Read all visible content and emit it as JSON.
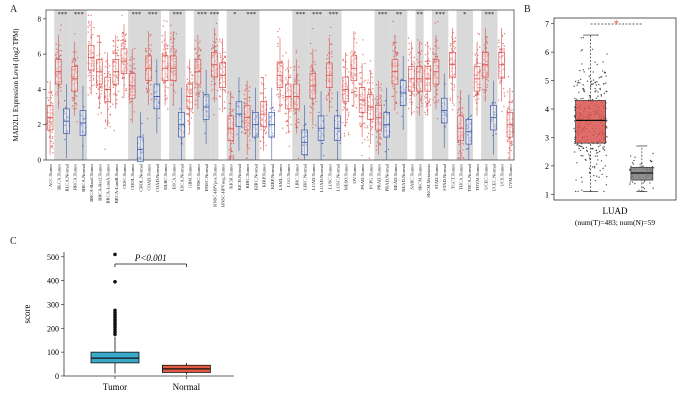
{
  "figure": {
    "panel_a": {
      "letter": "A",
      "ylabel": "MAD2L1 Expression Level (log2 TPM)",
      "yticks": [
        0,
        2,
        4,
        6,
        8
      ],
      "ylim": [
        0,
        8.5
      ],
      "groups": [
        {
          "label": "ACC.Tumor",
          "type": "tumor",
          "median": 2.4,
          "sig": ""
        },
        {
          "label": "BLCA.Tumor",
          "type": "tumor",
          "median": 5.0,
          "sig": "***",
          "shade": true
        },
        {
          "label": "BLCA.Normal",
          "type": "normal",
          "median": 2.2
        },
        {
          "label": "BRCA.Tumor",
          "type": "tumor",
          "median": 4.6,
          "sig": "***",
          "shade": true
        },
        {
          "label": "BRCA.Normal",
          "type": "normal",
          "median": 2.1
        },
        {
          "label": "BRCA-Basal.Tumor",
          "type": "tumor",
          "median": 5.8
        },
        {
          "label": "BRCA-Her2.Tumor",
          "type": "tumor",
          "median": 5.0
        },
        {
          "label": "BRCA-LumA.Tumor",
          "type": "tumor",
          "median": 4.0
        },
        {
          "label": "BRCA-LumB.Tumor",
          "type": "tumor",
          "median": 5.0
        },
        {
          "label": "CESC.Tumor",
          "type": "tumor",
          "median": 5.6
        },
        {
          "label": "CHOL.Tumor",
          "type": "tumor",
          "median": 4.2,
          "sig": "***",
          "shade": true
        },
        {
          "label": "CHOL.Normal",
          "type": "normal",
          "median": 0.6
        },
        {
          "label": "COAD.Tumor",
          "type": "tumor",
          "median": 5.2,
          "sig": "***",
          "shade": true
        },
        {
          "label": "COAD.Normal",
          "type": "normal",
          "median": 3.6
        },
        {
          "label": "DLBC.Tumor",
          "type": "tumor",
          "median": 5.2
        },
        {
          "label": "ESCA.Tumor",
          "type": "tumor",
          "median": 5.2,
          "sig": "***",
          "shade": true
        },
        {
          "label": "ESCA.Normal",
          "type": "normal",
          "median": 2.0
        },
        {
          "label": "GBM.Tumor",
          "type": "tumor",
          "median": 3.6
        },
        {
          "label": "HNSC.Tumor",
          "type": "tumor",
          "median": 5.0,
          "sig": "***",
          "shade": true
        },
        {
          "label": "HNSC.Normal",
          "type": "normal",
          "median": 3.0
        },
        {
          "label": "HNSC-HPVpos.Tumor",
          "type": "tumor",
          "median": 5.4,
          "sig": "***",
          "shade": true
        },
        {
          "label": "HNSC-HPVneg.Tumor",
          "type": "tumor",
          "median": 4.8
        },
        {
          "label": "KICH.Tumor",
          "type": "tumor",
          "median": 1.8,
          "sig": "*",
          "shade": true
        },
        {
          "label": "KICH.Normal",
          "type": "normal",
          "median": 2.6
        },
        {
          "label": "KIRC.Tumor",
          "type": "tumor",
          "median": 2.4,
          "sig": "***",
          "shade": true
        },
        {
          "label": "KIRC.Normal",
          "type": "normal",
          "median": 2.0
        },
        {
          "label": "KIRP.Tumor",
          "type": "tumor",
          "median": 2.6
        },
        {
          "label": "KIRP.Normal",
          "type": "normal",
          "median": 2.0
        },
        {
          "label": "LAML.Tumor",
          "type": "tumor",
          "median": 4.8
        },
        {
          "label": "LGG.Tumor",
          "type": "tumor",
          "median": 3.6
        },
        {
          "label": "LIHC.Tumor",
          "type": "tumor",
          "median": 3.6,
          "sig": "***",
          "shade": true
        },
        {
          "label": "LIHC.Normal",
          "type": "normal",
          "median": 1.0
        },
        {
          "label": "LUAD.Tumor",
          "type": "tumor",
          "median": 4.2,
          "sig": "***",
          "shade": true
        },
        {
          "label": "LUAD.Normal",
          "type": "normal",
          "median": 1.8
        },
        {
          "label": "LUSC.Tumor",
          "type": "tumor",
          "median": 4.8,
          "sig": "***",
          "shade": true
        },
        {
          "label": "LUSC.Normal",
          "type": "normal",
          "median": 1.8
        },
        {
          "label": "MESO.Tumor",
          "type": "tumor",
          "median": 4.0
        },
        {
          "label": "OV.Tumor",
          "type": "tumor",
          "median": 5.2
        },
        {
          "label": "PAAD.Tumor",
          "type": "tumor",
          "median": 3.4
        },
        {
          "label": "PCPG.Tumor",
          "type": "tumor",
          "median": 3.0
        },
        {
          "label": "PRAD.Tumor",
          "type": "tumor",
          "median": 2.4,
          "sig": "***",
          "shade": true
        },
        {
          "label": "PRAD.Normal",
          "type": "normal",
          "median": 2.0
        },
        {
          "label": "READ.Tumor",
          "type": "tumor",
          "median": 5.0,
          "sig": "**",
          "shade": true
        },
        {
          "label": "READ.Normal",
          "type": "normal",
          "median": 3.8
        },
        {
          "label": "SARC.Tumor",
          "type": "tumor",
          "median": 4.6
        },
        {
          "label": "SKCM.Tumor",
          "type": "tumor",
          "median": 4.6,
          "sig": "**",
          "shade": true
        },
        {
          "label": "SKCM.Metastasis",
          "type": "tumor",
          "median": 4.6
        },
        {
          "label": "STAD.Tumor",
          "type": "tumor",
          "median": 5.0,
          "sig": "***",
          "shade": true
        },
        {
          "label": "STAD.Normal",
          "type": "normal",
          "median": 2.8
        },
        {
          "label": "TGCT.Tumor",
          "type": "tumor",
          "median": 5.4
        },
        {
          "label": "THCA.Tumor",
          "type": "tumor",
          "median": 1.8,
          "sig": "*",
          "shade": true
        },
        {
          "label": "THCA.Normal",
          "type": "normal",
          "median": 1.6
        },
        {
          "label": "THYM.Tumor",
          "type": "tumor",
          "median": 4.6
        },
        {
          "label": "UCEC.Tumor",
          "type": "tumor",
          "median": 5.4,
          "sig": "***",
          "shade": true
        },
        {
          "label": "UCEC.Normal",
          "type": "normal",
          "median": 2.4
        },
        {
          "label": "UCS.Tumor",
          "type": "tumor",
          "median": 5.4
        },
        {
          "label": "UVM.Tumor",
          "type": "tumor",
          "median": 2.0
        }
      ]
    },
    "panel_b": {
      "letter": "B",
      "xlabel_line1": "LUAD",
      "xlabel_line2": "(num(T)=483; num(N)=59",
      "yticks": [
        1,
        2,
        3,
        4,
        5,
        6,
        7
      ],
      "ylim": [
        0.8,
        7.2
      ],
      "sig": "*",
      "boxes": [
        {
          "name": "tumor",
          "color": "#d9534f",
          "q1": 2.8,
          "median": 3.6,
          "q3": 4.3,
          "wmin": 1.1,
          "wmax": 6.6
        },
        {
          "name": "normal",
          "color": "#7a7a7a",
          "q1": 1.5,
          "median": 1.75,
          "q3": 1.95,
          "wmin": 1.1,
          "wmax": 2.7
        }
      ]
    },
    "panel_c": {
      "letter": "C",
      "ylabel": "score",
      "yticks": [
        0,
        100,
        200,
        300,
        400,
        500
      ],
      "ylim": [
        0,
        520
      ],
      "pvalue": "P<0.001",
      "categories": [
        "Tumor",
        "Normal"
      ],
      "boxes": [
        {
          "name": "Tumor",
          "color": "#3aa8c9",
          "q1": 55,
          "median": 75,
          "q3": 100,
          "wmin": 10,
          "wmax": 165,
          "outliers": [
            175,
            185,
            195,
            205,
            215,
            225,
            235,
            245,
            255,
            265,
            275,
            395,
            510
          ]
        },
        {
          "name": "Normal",
          "color": "#e05a45",
          "q1": 15,
          "median": 30,
          "q3": 45,
          "wmin": 5,
          "wmax": 55,
          "outliers": []
        }
      ]
    },
    "colors": {
      "tumor": "#d9534f",
      "normal": "#3b5bab",
      "shade": "#d9d9d9",
      "sig": "#d9534f"
    }
  },
  "chart_data": [
    {
      "type": "box",
      "title": "",
      "ylabel": "MAD2L1 Expression Level (log2 TPM)",
      "ylim": [
        0,
        8.5
      ],
      "categories": [
        "ACC.Tumor",
        "BLCA.Tumor",
        "BLCA.Normal",
        "BRCA.Tumor",
        "BRCA.Normal",
        "BRCA-Basal.Tumor",
        "BRCA-Her2.Tumor",
        "BRCA-LumA.Tumor",
        "BRCA-LumB.Tumor",
        "CESC.Tumor",
        "CHOL.Tumor",
        "CHOL.Normal",
        "COAD.Tumor",
        "COAD.Normal",
        "DLBC.Tumor",
        "ESCA.Tumor",
        "ESCA.Normal",
        "GBM.Tumor",
        "HNSC.Tumor",
        "HNSC.Normal",
        "HNSC-HPVpos.Tumor",
        "HNSC-HPVneg.Tumor",
        "KICH.Tumor",
        "KICH.Normal",
        "KIRC.Tumor",
        "KIRC.Normal",
        "KIRP.Tumor",
        "KIRP.Normal",
        "LAML.Tumor",
        "LGG.Tumor",
        "LIHC.Tumor",
        "LIHC.Normal",
        "LUAD.Tumor",
        "LUAD.Normal",
        "LUSC.Tumor",
        "LUSC.Normal",
        "MESO.Tumor",
        "OV.Tumor",
        "PAAD.Tumor",
        "PCPG.Tumor",
        "PRAD.Tumor",
        "PRAD.Normal",
        "READ.Tumor",
        "READ.Normal",
        "SARC.Tumor",
        "SKCM.Tumor",
        "SKCM.Metastasis",
        "STAD.Tumor",
        "STAD.Normal",
        "TGCT.Tumor",
        "THCA.Tumor",
        "THCA.Normal",
        "THYM.Tumor",
        "UCEC.Tumor",
        "UCEC.Normal",
        "UCS.Tumor",
        "UVM.Tumor"
      ]
    },
    {
      "type": "box",
      "xlabel": "LUAD (num(T)=483; num(N)=59",
      "ylim": [
        0.8,
        7.2
      ],
      "series": [
        {
          "name": "tumor",
          "median": 3.6
        },
        {
          "name": "normal",
          "median": 1.75
        }
      ]
    },
    {
      "type": "box",
      "ylabel": "score",
      "categories": [
        "Tumor",
        "Normal"
      ],
      "ylim": [
        0,
        520
      ],
      "series": [
        {
          "name": "Tumor",
          "median": 75
        },
        {
          "name": "Normal",
          "median": 30
        }
      ],
      "annotation": "P<0.001"
    }
  ]
}
